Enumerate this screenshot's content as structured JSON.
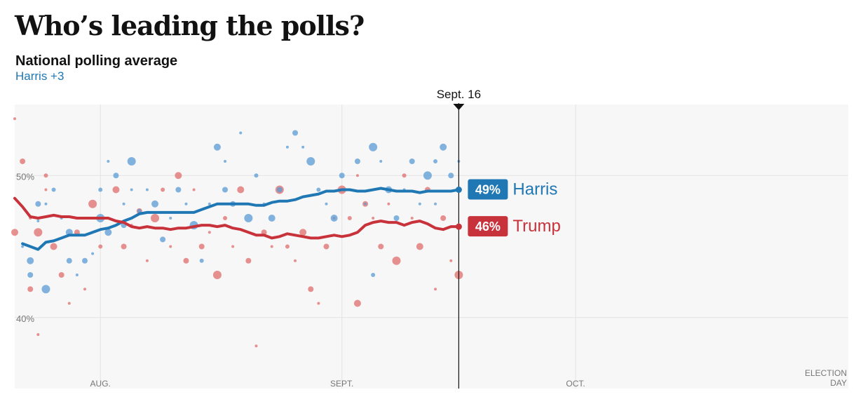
{
  "page": {
    "headline": "Who’s leading the polls?",
    "subtitle": "National polling average",
    "leader_text": "Harris +3"
  },
  "colors": {
    "harris": "#1f77b4",
    "trump": "#c8323b",
    "harris_dot": "#5a9bd4",
    "trump_dot": "#e06c6c",
    "plot_bg": "#f7f7f7",
    "grid": "#e3e3e3",
    "label_text": "#777777"
  },
  "chart_data": {
    "type": "line",
    "title": "National polling average",
    "x_unit": "date",
    "xlim": [
      "2024-07-21",
      "2024-11-05"
    ],
    "ylim": [
      35,
      55
    ],
    "y_ticks": [
      {
        "value": 50,
        "label": "50%"
      },
      {
        "value": 40,
        "label": "40%"
      }
    ],
    "x_ticks": [
      {
        "date": "2024-08-01",
        "label": "AUG."
      },
      {
        "date": "2024-09-01",
        "label": "SEPT."
      },
      {
        "date": "2024-10-01",
        "label": "OCT."
      },
      {
        "date": "2024-11-05",
        "label": "ELECTION DAY",
        "lines": [
          "ELECTION",
          "DAY"
        ]
      }
    ],
    "current_marker": {
      "date": "2024-09-16",
      "label": "Sept. 16"
    },
    "grid": true,
    "series": [
      {
        "name": "Harris",
        "key": "harris",
        "end_label": "49%",
        "points": [
          [
            "2024-07-22",
            45.2
          ],
          [
            "2024-07-23",
            45.0
          ],
          [
            "2024-07-24",
            44.8
          ],
          [
            "2024-07-25",
            45.3
          ],
          [
            "2024-07-26",
            45.4
          ],
          [
            "2024-07-27",
            45.6
          ],
          [
            "2024-07-28",
            45.8
          ],
          [
            "2024-07-29",
            45.8
          ],
          [
            "2024-07-30",
            45.8
          ],
          [
            "2024-07-31",
            46.0
          ],
          [
            "2024-08-01",
            46.2
          ],
          [
            "2024-08-02",
            46.3
          ],
          [
            "2024-08-03",
            46.5
          ],
          [
            "2024-08-04",
            46.8
          ],
          [
            "2024-08-05",
            47.0
          ],
          [
            "2024-08-06",
            47.3
          ],
          [
            "2024-08-07",
            47.4
          ],
          [
            "2024-08-08",
            47.4
          ],
          [
            "2024-08-09",
            47.4
          ],
          [
            "2024-08-10",
            47.4
          ],
          [
            "2024-08-11",
            47.4
          ],
          [
            "2024-08-12",
            47.4
          ],
          [
            "2024-08-13",
            47.4
          ],
          [
            "2024-08-14",
            47.6
          ],
          [
            "2024-08-15",
            47.8
          ],
          [
            "2024-08-16",
            48.0
          ],
          [
            "2024-08-17",
            48.0
          ],
          [
            "2024-08-18",
            48.0
          ],
          [
            "2024-08-19",
            48.0
          ],
          [
            "2024-08-20",
            48.0
          ],
          [
            "2024-08-21",
            47.9
          ],
          [
            "2024-08-22",
            47.9
          ],
          [
            "2024-08-23",
            48.1
          ],
          [
            "2024-08-24",
            48.2
          ],
          [
            "2024-08-25",
            48.2
          ],
          [
            "2024-08-26",
            48.3
          ],
          [
            "2024-08-27",
            48.5
          ],
          [
            "2024-08-28",
            48.6
          ],
          [
            "2024-08-29",
            48.7
          ],
          [
            "2024-08-30",
            48.9
          ],
          [
            "2024-08-31",
            48.9
          ],
          [
            "2024-09-01",
            49.0
          ],
          [
            "2024-09-02",
            49.0
          ],
          [
            "2024-09-03",
            48.9
          ],
          [
            "2024-09-04",
            48.9
          ],
          [
            "2024-09-05",
            49.0
          ],
          [
            "2024-09-06",
            49.1
          ],
          [
            "2024-09-07",
            49.0
          ],
          [
            "2024-09-08",
            48.9
          ],
          [
            "2024-09-09",
            48.9
          ],
          [
            "2024-09-10",
            48.9
          ],
          [
            "2024-09-11",
            48.8
          ],
          [
            "2024-09-12",
            48.9
          ],
          [
            "2024-09-13",
            48.9
          ],
          [
            "2024-09-14",
            48.9
          ],
          [
            "2024-09-15",
            48.9
          ],
          [
            "2024-09-16",
            49.0
          ]
        ]
      },
      {
        "name": "Trump",
        "key": "trump",
        "end_label": "46%",
        "points": [
          [
            "2024-07-21",
            48.4
          ],
          [
            "2024-07-22",
            47.8
          ],
          [
            "2024-07-23",
            47.1
          ],
          [
            "2024-07-24",
            47.0
          ],
          [
            "2024-07-25",
            47.1
          ],
          [
            "2024-07-26",
            47.2
          ],
          [
            "2024-07-27",
            47.1
          ],
          [
            "2024-07-28",
            47.1
          ],
          [
            "2024-07-29",
            47.0
          ],
          [
            "2024-07-30",
            47.0
          ],
          [
            "2024-07-31",
            47.0
          ],
          [
            "2024-08-01",
            47.0
          ],
          [
            "2024-08-02",
            47.0
          ],
          [
            "2024-08-03",
            46.8
          ],
          [
            "2024-08-04",
            46.7
          ],
          [
            "2024-08-05",
            46.4
          ],
          [
            "2024-08-06",
            46.3
          ],
          [
            "2024-08-07",
            46.4
          ],
          [
            "2024-08-08",
            46.3
          ],
          [
            "2024-08-09",
            46.3
          ],
          [
            "2024-08-10",
            46.2
          ],
          [
            "2024-08-11",
            46.3
          ],
          [
            "2024-08-12",
            46.3
          ],
          [
            "2024-08-13",
            46.4
          ],
          [
            "2024-08-14",
            46.5
          ],
          [
            "2024-08-15",
            46.5
          ],
          [
            "2024-08-16",
            46.4
          ],
          [
            "2024-08-17",
            46.5
          ],
          [
            "2024-08-18",
            46.3
          ],
          [
            "2024-08-19",
            46.2
          ],
          [
            "2024-08-20",
            46.0
          ],
          [
            "2024-08-21",
            45.8
          ],
          [
            "2024-08-22",
            45.8
          ],
          [
            "2024-08-23",
            45.6
          ],
          [
            "2024-08-24",
            45.7
          ],
          [
            "2024-08-25",
            45.9
          ],
          [
            "2024-08-26",
            45.8
          ],
          [
            "2024-08-27",
            45.7
          ],
          [
            "2024-08-28",
            45.6
          ],
          [
            "2024-08-29",
            45.6
          ],
          [
            "2024-08-30",
            45.7
          ],
          [
            "2024-08-31",
            45.8
          ],
          [
            "2024-09-01",
            45.7
          ],
          [
            "2024-09-02",
            45.8
          ],
          [
            "2024-09-03",
            46.0
          ],
          [
            "2024-09-04",
            46.5
          ],
          [
            "2024-09-05",
            46.7
          ],
          [
            "2024-09-06",
            46.8
          ],
          [
            "2024-09-07",
            46.7
          ],
          [
            "2024-09-08",
            46.7
          ],
          [
            "2024-09-09",
            46.5
          ],
          [
            "2024-09-10",
            46.7
          ],
          [
            "2024-09-11",
            46.8
          ],
          [
            "2024-09-12",
            46.6
          ],
          [
            "2024-09-13",
            46.3
          ],
          [
            "2024-09-14",
            46.2
          ],
          [
            "2024-09-15",
            46.4
          ],
          [
            "2024-09-16",
            46.4
          ]
        ]
      }
    ],
    "polls": {
      "harris": [
        [
          "2024-07-22",
          45.0
        ],
        [
          "2024-07-23",
          44.0
        ],
        [
          "2024-07-23",
          43.0
        ],
        [
          "2024-07-24",
          46.8
        ],
        [
          "2024-07-24",
          48.0
        ],
        [
          "2024-07-25",
          48.0
        ],
        [
          "2024-07-25",
          42.0
        ],
        [
          "2024-07-26",
          49.0
        ],
        [
          "2024-07-27",
          47.0
        ],
        [
          "2024-07-28",
          46.0
        ],
        [
          "2024-07-28",
          44.0
        ],
        [
          "2024-07-29",
          43.0
        ],
        [
          "2024-07-30",
          44.0
        ],
        [
          "2024-07-31",
          44.5
        ],
        [
          "2024-08-01",
          47.0
        ],
        [
          "2024-08-01",
          49.0
        ],
        [
          "2024-08-02",
          51.0
        ],
        [
          "2024-08-02",
          46.0
        ],
        [
          "2024-08-03",
          50.0
        ],
        [
          "2024-08-04",
          48.0
        ],
        [
          "2024-08-04",
          46.5
        ],
        [
          "2024-08-05",
          49.0
        ],
        [
          "2024-08-05",
          51.0
        ],
        [
          "2024-08-06",
          47.5
        ],
        [
          "2024-08-07",
          49.0
        ],
        [
          "2024-08-08",
          48.0
        ],
        [
          "2024-08-09",
          45.5
        ],
        [
          "2024-08-10",
          47.0
        ],
        [
          "2024-08-11",
          49.0
        ],
        [
          "2024-08-12",
          48.0
        ],
        [
          "2024-08-13",
          46.5
        ],
        [
          "2024-08-14",
          44.0
        ],
        [
          "2024-08-15",
          48.0
        ],
        [
          "2024-08-16",
          52.0
        ],
        [
          "2024-08-17",
          49.0
        ],
        [
          "2024-08-17",
          51.0
        ],
        [
          "2024-08-18",
          48.0
        ],
        [
          "2024-08-19",
          53.0
        ],
        [
          "2024-08-20",
          47.0
        ],
        [
          "2024-08-21",
          50.0
        ],
        [
          "2024-08-22",
          48.0
        ],
        [
          "2024-08-23",
          47.0
        ],
        [
          "2024-08-24",
          49.0
        ],
        [
          "2024-08-25",
          52.0
        ],
        [
          "2024-08-26",
          53.0
        ],
        [
          "2024-08-27",
          52.0
        ],
        [
          "2024-08-28",
          51.0
        ],
        [
          "2024-08-29",
          49.0
        ],
        [
          "2024-08-30",
          48.0
        ],
        [
          "2024-08-31",
          47.0
        ],
        [
          "2024-09-01",
          50.0
        ],
        [
          "2024-09-02",
          49.0
        ],
        [
          "2024-09-03",
          51.0
        ],
        [
          "2024-09-04",
          48.0
        ],
        [
          "2024-09-05",
          52.0
        ],
        [
          "2024-09-05",
          43.0
        ],
        [
          "2024-09-06",
          51.0
        ],
        [
          "2024-09-07",
          49.0
        ],
        [
          "2024-09-08",
          47.0
        ],
        [
          "2024-09-09",
          49.0
        ],
        [
          "2024-09-10",
          51.0
        ],
        [
          "2024-09-11",
          48.0
        ],
        [
          "2024-09-12",
          50.0
        ],
        [
          "2024-09-13",
          51.0
        ],
        [
          "2024-09-13",
          48.0
        ],
        [
          "2024-09-14",
          52.0
        ],
        [
          "2024-09-15",
          50.0
        ],
        [
          "2024-09-16",
          51.0
        ]
      ],
      "trump": [
        [
          "2024-07-21",
          54.0
        ],
        [
          "2024-07-21",
          46.0
        ],
        [
          "2024-07-22",
          51.0
        ],
        [
          "2024-07-23",
          47.0
        ],
        [
          "2024-07-23",
          42.0
        ],
        [
          "2024-07-24",
          38.8
        ],
        [
          "2024-07-24",
          46.0
        ],
        [
          "2024-07-25",
          50.0
        ],
        [
          "2024-07-25",
          49.0
        ],
        [
          "2024-07-26",
          45.0
        ],
        [
          "2024-07-27",
          43.0
        ],
        [
          "2024-07-28",
          41.0
        ],
        [
          "2024-07-29",
          46.0
        ],
        [
          "2024-07-30",
          42.0
        ],
        [
          "2024-07-31",
          48.0
        ],
        [
          "2024-08-01",
          45.0
        ],
        [
          "2024-08-02",
          47.0
        ],
        [
          "2024-08-03",
          49.0
        ],
        [
          "2024-08-04",
          45.0
        ],
        [
          "2024-08-05",
          46.5
        ],
        [
          "2024-08-06",
          47.5
        ],
        [
          "2024-08-07",
          44.0
        ],
        [
          "2024-08-08",
          47.0
        ],
        [
          "2024-08-09",
          49.0
        ],
        [
          "2024-08-10",
          45.0
        ],
        [
          "2024-08-11",
          50.0
        ],
        [
          "2024-08-12",
          44.0
        ],
        [
          "2024-08-13",
          49.0
        ],
        [
          "2024-08-14",
          45.0
        ],
        [
          "2024-08-15",
          46.0
        ],
        [
          "2024-08-16",
          43.0
        ],
        [
          "2024-08-17",
          47.0
        ],
        [
          "2024-08-18",
          45.0
        ],
        [
          "2024-08-19",
          49.0
        ],
        [
          "2024-08-20",
          44.0
        ],
        [
          "2024-08-21",
          38.0
        ],
        [
          "2024-08-22",
          46.0
        ],
        [
          "2024-08-23",
          45.0
        ],
        [
          "2024-08-24",
          49.0
        ],
        [
          "2024-08-25",
          45.0
        ],
        [
          "2024-08-26",
          44.0
        ],
        [
          "2024-08-27",
          46.0
        ],
        [
          "2024-08-28",
          42.0
        ],
        [
          "2024-08-29",
          41.0
        ],
        [
          "2024-08-30",
          45.0
        ],
        [
          "2024-08-31",
          47.0
        ],
        [
          "2024-09-01",
          49.0
        ],
        [
          "2024-09-02",
          47.0
        ],
        [
          "2024-09-03",
          50.0
        ],
        [
          "2024-09-03",
          41.0
        ],
        [
          "2024-09-04",
          48.0
        ],
        [
          "2024-09-05",
          47.0
        ],
        [
          "2024-09-06",
          45.0
        ],
        [
          "2024-09-07",
          48.0
        ],
        [
          "2024-09-08",
          44.0
        ],
        [
          "2024-09-09",
          50.0
        ],
        [
          "2024-09-10",
          47.0
        ],
        [
          "2024-09-11",
          45.0
        ],
        [
          "2024-09-12",
          49.0
        ],
        [
          "2024-09-13",
          42.0
        ],
        [
          "2024-09-14",
          47.0
        ],
        [
          "2024-09-15",
          44.0
        ],
        [
          "2024-09-16",
          43.0
        ]
      ]
    }
  }
}
